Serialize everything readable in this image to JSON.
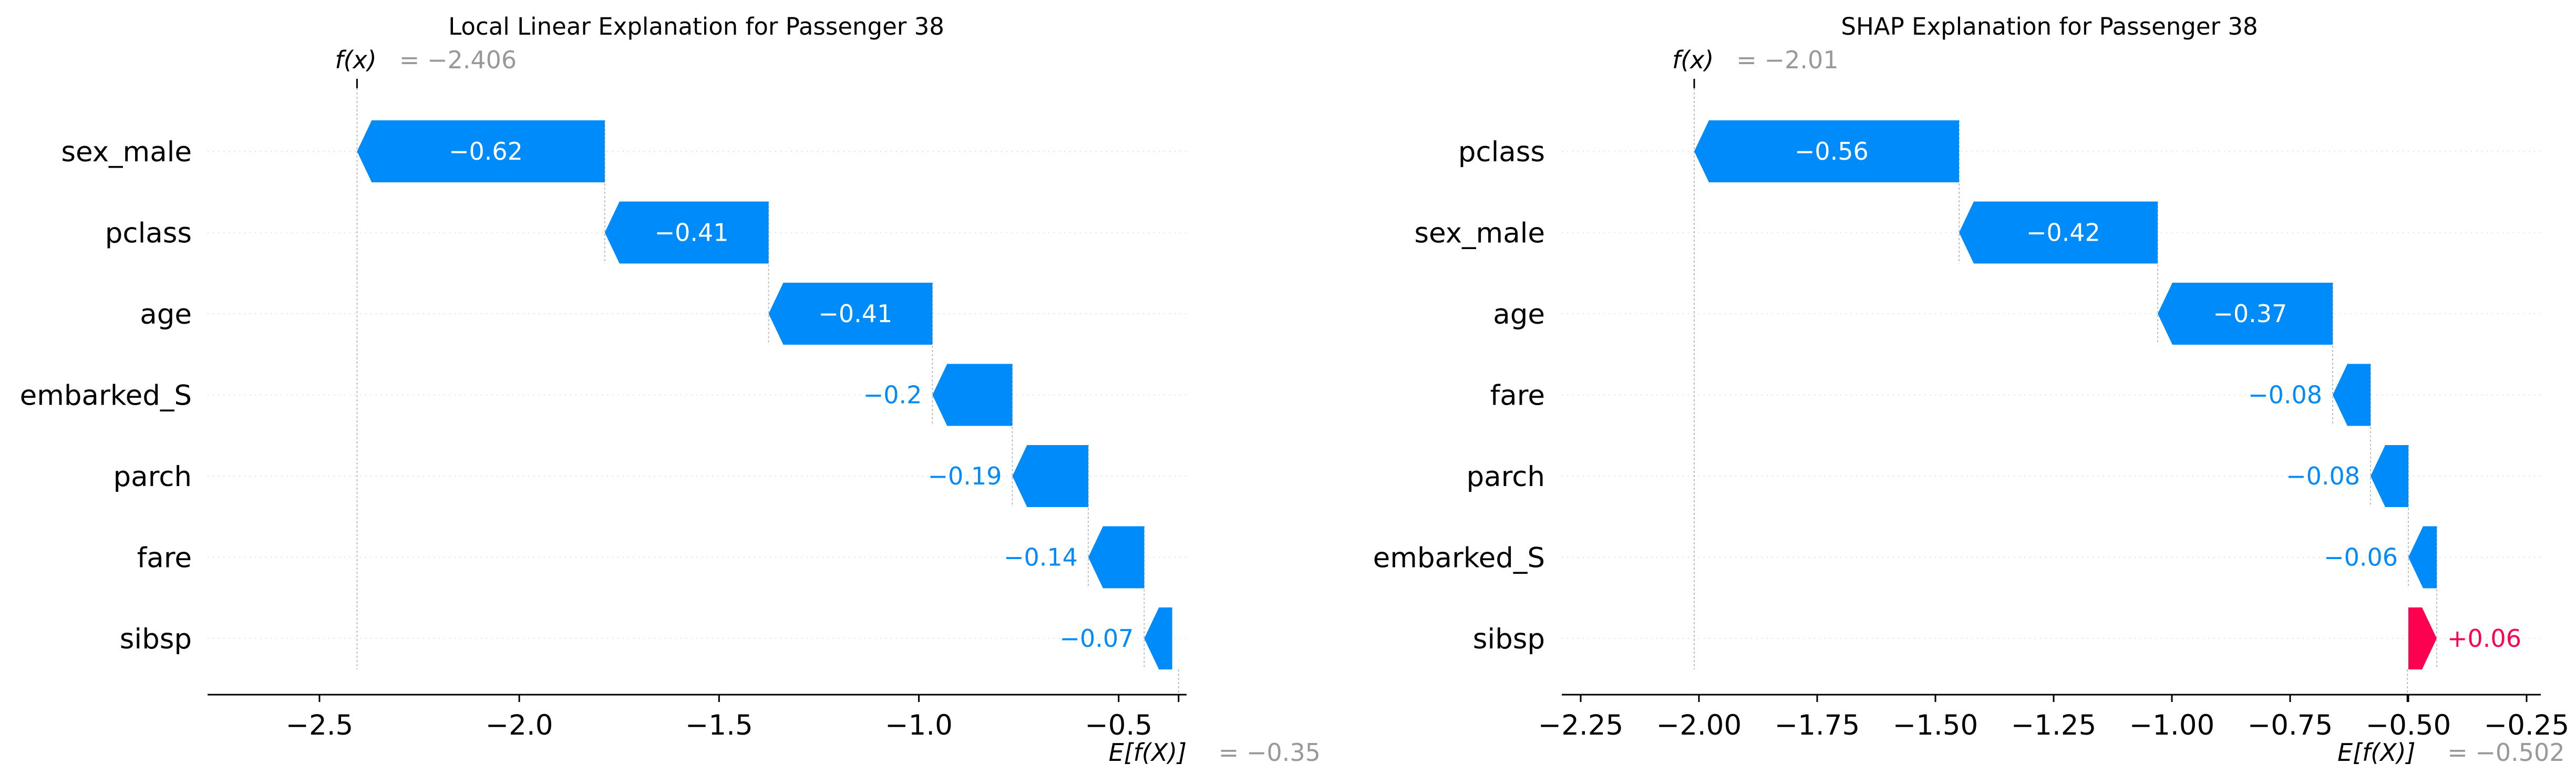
{
  "chart_data": [
    {
      "type": "waterfall",
      "title": "Local Linear Explanation for Passenger 38",
      "features": [
        "sex_male",
        "pclass",
        "age",
        "embarked_S",
        "parch",
        "fare",
        "sibsp"
      ],
      "values": [
        -0.62,
        -0.41,
        -0.41,
        -0.2,
        -0.19,
        -0.14,
        -0.07
      ],
      "value_labels": [
        "−0.62",
        "−0.41",
        "−0.41",
        "−0.2",
        "−0.19",
        "−0.14",
        "−0.07"
      ],
      "base_value": -0.35,
      "fx": -2.406,
      "fx_label_key": "f(x)",
      "fx_label_value": "= −2.406",
      "base_label_key": "E[f(X)]",
      "base_label_value": "= −0.35",
      "xlim": [
        -2.78,
        -0.33
      ],
      "xticks": [
        -2.5,
        -2.0,
        -1.5,
        -1.0,
        -0.5
      ],
      "xtick_labels": [
        "−2.5",
        "−2.0",
        "−1.5",
        "−1.0",
        "−0.5"
      ]
    },
    {
      "type": "waterfall",
      "title": "SHAP Explanation for Passenger 38",
      "features": [
        "pclass",
        "sex_male",
        "age",
        "fare",
        "parch",
        "embarked_S",
        "sibsp"
      ],
      "values": [
        -0.56,
        -0.42,
        -0.37,
        -0.08,
        -0.08,
        -0.06,
        0.06
      ],
      "value_labels": [
        "−0.56",
        "−0.42",
        "−0.37",
        "−0.08",
        "−0.08",
        "−0.06",
        "+0.06"
      ],
      "base_value": -0.502,
      "fx": -2.01,
      "fx_label_key": "f(x)",
      "fx_label_value": "= −2.01",
      "base_label_key": "E[f(X)]",
      "base_label_value": "= −0.502",
      "xlim": [
        -2.29,
        -0.22
      ],
      "xticks": [
        -2.25,
        -2.0,
        -1.75,
        -1.5,
        -1.25,
        -1.0,
        -0.75,
        -0.5,
        -0.25
      ],
      "xtick_labels": [
        "−2.25",
        "−2.00",
        "−1.75",
        "−1.50",
        "−1.25",
        "−1.00",
        "−0.75",
        "−0.50",
        "−0.25"
      ]
    }
  ],
  "colors": {
    "negative": "#008bfb",
    "positive": "#ff0051",
    "annotation": "#999999"
  }
}
